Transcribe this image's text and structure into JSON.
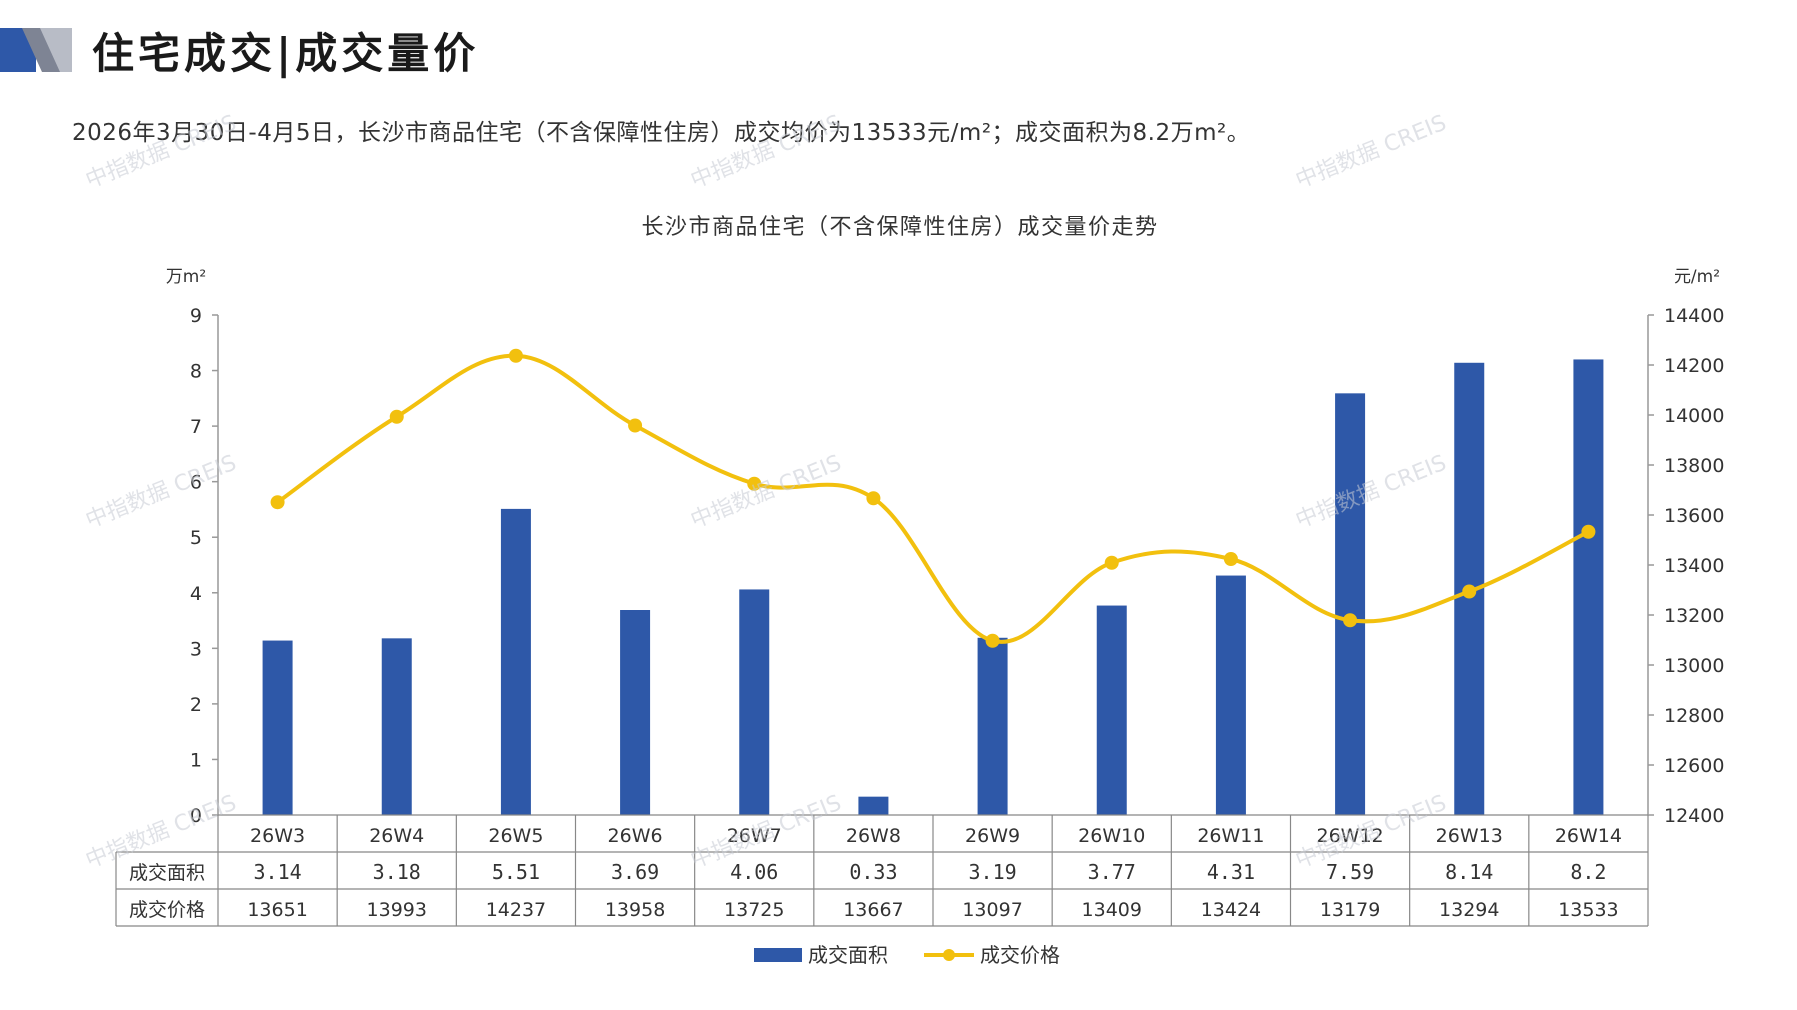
{
  "header": {
    "title": "住宅成交|成交量价",
    "summary": "2026年3月30日-4月5日，长沙市商品住宅（不含保障性住房）成交均价为13533元/m²；成交面积为8.2万m²。"
  },
  "watermark": {
    "text": "中指数据 CREIS"
  },
  "colors": {
    "bar": "#2E58A8",
    "line": "#F2C00E",
    "logo_dark": "#2E58A8",
    "logo_light": "#B8BCC6",
    "grid_line": "#888888"
  },
  "chart_data": {
    "type": "bar+line",
    "title": "长沙市商品住宅（不含保障性住房）成交量价走势",
    "left_axis": {
      "unit": "万m²",
      "ticks": [
        "0",
        "1",
        "2",
        "3",
        "4",
        "5",
        "6",
        "7",
        "8",
        "9"
      ],
      "range": [
        0,
        9
      ]
    },
    "right_axis": {
      "unit": "元/m²",
      "ticks": [
        "12400",
        "12600",
        "12800",
        "13000",
        "13200",
        "13400",
        "13600",
        "13800",
        "14000",
        "14200",
        "14400"
      ],
      "range": [
        12400,
        14400
      ]
    },
    "categories": [
      "26W3",
      "26W4",
      "26W5",
      "26W6",
      "26W7",
      "26W8",
      "26W9",
      "26W10",
      "26W11",
      "26W12",
      "26W13",
      "26W14"
    ],
    "series": [
      {
        "name": "成交面积",
        "type": "bar",
        "axis": "left",
        "values": [
          3.14,
          3.18,
          5.51,
          3.69,
          4.06,
          0.33,
          3.19,
          3.77,
          4.31,
          7.59,
          8.14,
          8.2
        ],
        "labels": [
          "3.14",
          "3.18",
          "5.51",
          "3.69",
          "4.06",
          "0.33",
          "3.19",
          "3.77",
          "4.31",
          "7.59",
          "8.14",
          "8.2"
        ]
      },
      {
        "name": "成交价格",
        "type": "line",
        "axis": "right",
        "values": [
          13651,
          13993,
          14237,
          13958,
          13725,
          13667,
          13097,
          13409,
          13424,
          13179,
          13294,
          13533
        ],
        "labels": [
          "13651",
          "13993",
          "14237",
          "13958",
          "13725",
          "13667",
          "13097",
          "13409",
          "13424",
          "13179",
          "13294",
          "13533"
        ]
      }
    ],
    "legend_position": "bottom-center",
    "data_table": true
  }
}
